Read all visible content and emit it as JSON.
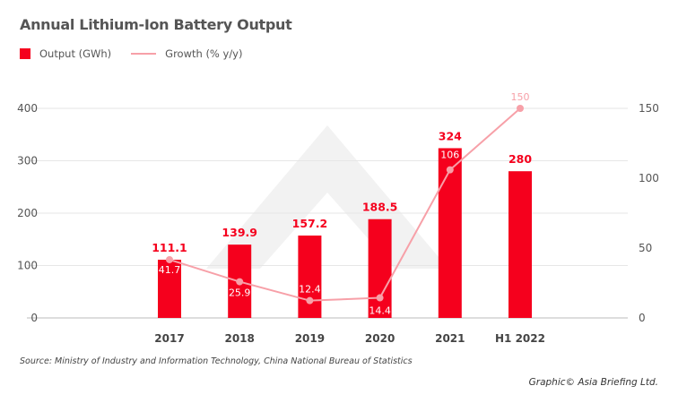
{
  "chart_data": {
    "type": "bar",
    "title": "Annual Lithium-Ion Battery Output",
    "categories": [
      "2017",
      "2018",
      "2019",
      "2020",
      "2021",
      "H1 2022"
    ],
    "series": [
      {
        "name": "Output (GWh)",
        "type": "bar",
        "axis": "left",
        "color": "#f5001d",
        "values": [
          111.1,
          139.9,
          157.2,
          188.5,
          324,
          280
        ],
        "labels": [
          "111.1",
          "139.9",
          "157.2",
          "188.5",
          "324",
          "280"
        ]
      },
      {
        "name": "Growth (% y/y)",
        "type": "line",
        "axis": "right",
        "color": "#f7a0a8",
        "values": [
          41.7,
          25.9,
          12.4,
          14.4,
          106,
          150
        ],
        "labels": [
          "41.7",
          "25.9",
          "12.4",
          "14.4",
          "106",
          "150"
        ]
      }
    ],
    "left_axis": {
      "ylim": [
        0,
        400
      ],
      "ticks": [
        "0",
        "100",
        "200",
        "300",
        "400"
      ]
    },
    "right_axis": {
      "ylim": [
        0,
        150
      ],
      "ticks": [
        "0",
        "50",
        "100",
        "150"
      ]
    },
    "grid": true,
    "legend_placement": "top-left"
  },
  "source": "Source: Ministry of Industry and Information Technology, China National Bureau of Statistics",
  "credit": "Graphic© Asia Briefing Ltd."
}
